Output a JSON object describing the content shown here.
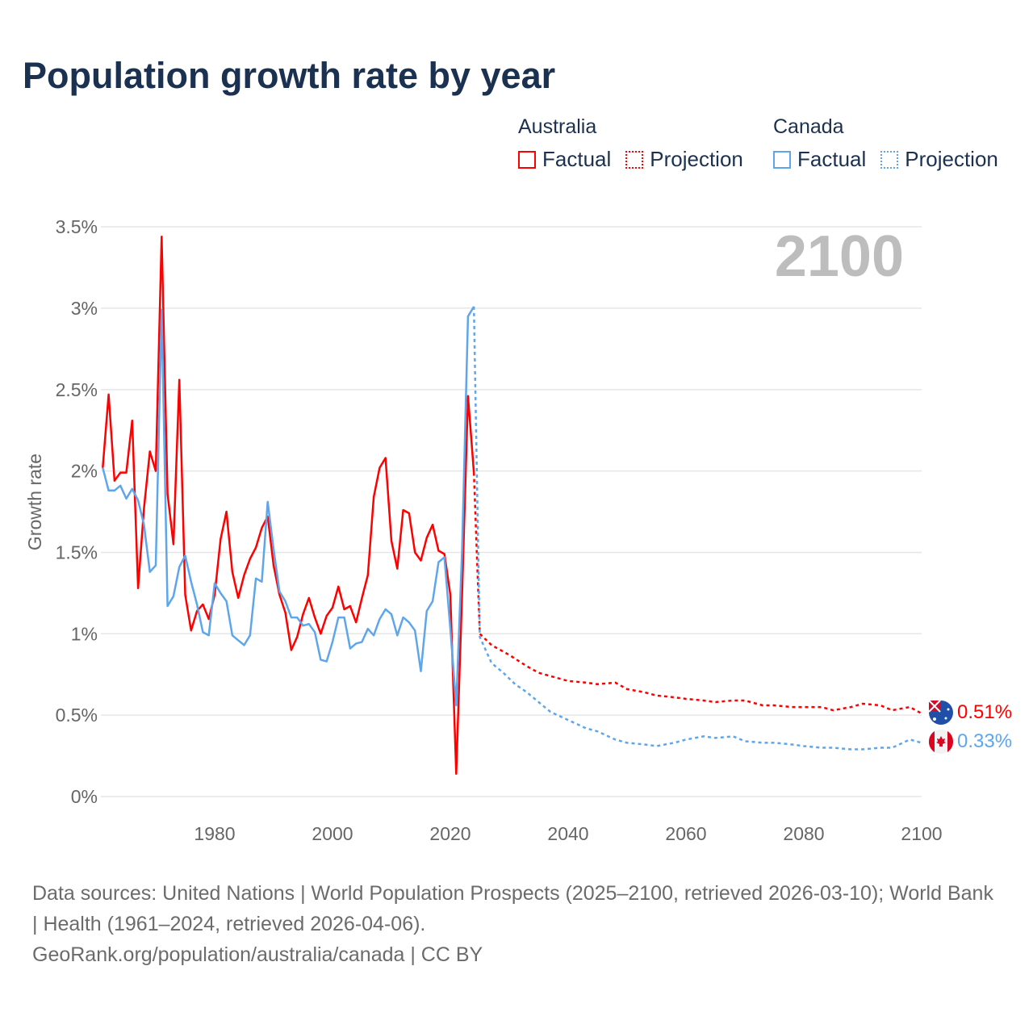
{
  "title": "Population growth rate by year",
  "legend": {
    "groups": [
      {
        "name": "Australia",
        "factual": "Factual",
        "projection": "Projection",
        "color": "#ff0000"
      },
      {
        "name": "Canada",
        "factual": "Factual",
        "projection": "Projection",
        "color": "#5ea6eb"
      }
    ]
  },
  "footer": {
    "sources": "Data sources: United Nations | World Population Prospects (2025–2100, retrieved 2026-03-10); World Bank | Health (1961–2024, retrieved 2026-04-06).",
    "attribution": "GeoRank.org/population/australia/canada | CC BY"
  },
  "chart_data": {
    "type": "line",
    "title": "Population growth rate by year",
    "xlabel": "",
    "ylabel": "Growth rate",
    "xlim": [
      1961,
      2100
    ],
    "ylim": [
      0,
      3.5
    ],
    "x_ticks": [
      "1980",
      "2000",
      "2020",
      "2040",
      "2060",
      "2080",
      "2100"
    ],
    "x_tick_values": [
      1980,
      2000,
      2020,
      2040,
      2060,
      2080,
      2100
    ],
    "y_ticks": [
      "0%",
      "0.5%",
      "1%",
      "1.5%",
      "2%",
      "2.5%",
      "3%",
      "3.5%"
    ],
    "y_tick_values": [
      0,
      0.5,
      1,
      1.5,
      2,
      2.5,
      3,
      3.5
    ],
    "year_display": "2100",
    "grid": true,
    "legend_position": "top-right",
    "series": [
      {
        "name": "Australia",
        "kind": "Factual",
        "color": "#ff0000",
        "style": "solid",
        "x_start": 1961,
        "values": [
          2.02,
          2.47,
          1.94,
          1.99,
          1.99,
          2.31,
          1.28,
          1.77,
          2.12,
          2.0,
          3.44,
          1.86,
          1.55,
          2.56,
          1.24,
          1.02,
          1.14,
          1.18,
          1.09,
          1.24,
          1.58,
          1.75,
          1.38,
          1.22,
          1.36,
          1.46,
          1.53,
          1.65,
          1.72,
          1.42,
          1.24,
          1.13,
          0.9,
          0.98,
          1.12,
          1.22,
          1.1,
          1.0,
          1.11,
          1.16,
          1.29,
          1.15,
          1.17,
          1.07,
          1.22,
          1.36,
          1.84,
          2.02,
          2.08,
          1.57,
          1.4,
          1.76,
          1.74,
          1.5,
          1.45,
          1.59,
          1.67,
          1.51,
          1.49,
          1.24,
          0.14,
          1.25,
          2.46,
          1.99
        ]
      },
      {
        "name": "Australia",
        "kind": "Projection",
        "color": "#ff0000",
        "style": "dotted",
        "x": [
          2024,
          2025,
          2027,
          2030,
          2033,
          2035,
          2038,
          2040,
          2043,
          2045,
          2048,
          2050,
          2053,
          2055,
          2058,
          2060,
          2063,
          2065,
          2068,
          2070,
          2073,
          2075,
          2078,
          2080,
          2083,
          2085,
          2088,
          2090,
          2093,
          2095,
          2098,
          2100
        ],
        "values": [
          1.99,
          1.0,
          0.93,
          0.87,
          0.8,
          0.76,
          0.73,
          0.71,
          0.7,
          0.69,
          0.7,
          0.66,
          0.64,
          0.62,
          0.61,
          0.6,
          0.59,
          0.58,
          0.59,
          0.59,
          0.56,
          0.56,
          0.55,
          0.55,
          0.55,
          0.53,
          0.55,
          0.57,
          0.56,
          0.53,
          0.55,
          0.51
        ],
        "end_label": "0.51%"
      },
      {
        "name": "Canada",
        "kind": "Factual",
        "color": "#5ea6eb",
        "style": "solid",
        "x_start": 1961,
        "values": [
          2.02,
          1.88,
          1.88,
          1.91,
          1.83,
          1.89,
          1.82,
          1.67,
          1.38,
          1.42,
          2.99,
          1.17,
          1.23,
          1.41,
          1.48,
          1.32,
          1.18,
          1.01,
          0.99,
          1.31,
          1.25,
          1.2,
          0.99,
          0.96,
          0.93,
          0.99,
          1.34,
          1.32,
          1.81,
          1.52,
          1.26,
          1.2,
          1.1,
          1.1,
          1.05,
          1.06,
          1.01,
          0.84,
          0.83,
          0.95,
          1.1,
          1.1,
          0.91,
          0.94,
          0.95,
          1.03,
          0.99,
          1.09,
          1.15,
          1.12,
          0.99,
          1.1,
          1.07,
          1.02,
          0.77,
          1.14,
          1.2,
          1.44,
          1.47,
          1.03,
          0.56,
          1.52,
          2.95,
          3.01
        ]
      },
      {
        "name": "Canada",
        "kind": "Projection",
        "color": "#5ea6eb",
        "style": "dotted",
        "x": [
          2024,
          2025,
          2027,
          2029,
          2031,
          2033,
          2035,
          2037,
          2040,
          2043,
          2045,
          2048,
          2050,
          2053,
          2055,
          2058,
          2060,
          2063,
          2065,
          2068,
          2070,
          2073,
          2075,
          2078,
          2080,
          2083,
          2085,
          2088,
          2090,
          2093,
          2095,
          2098,
          2100
        ],
        "values": [
          3.01,
          0.98,
          0.82,
          0.76,
          0.69,
          0.64,
          0.58,
          0.52,
          0.47,
          0.42,
          0.4,
          0.35,
          0.33,
          0.32,
          0.31,
          0.33,
          0.35,
          0.37,
          0.36,
          0.37,
          0.34,
          0.33,
          0.33,
          0.32,
          0.31,
          0.3,
          0.3,
          0.29,
          0.29,
          0.3,
          0.3,
          0.35,
          0.33
        ],
        "end_label": "0.33%"
      }
    ]
  }
}
